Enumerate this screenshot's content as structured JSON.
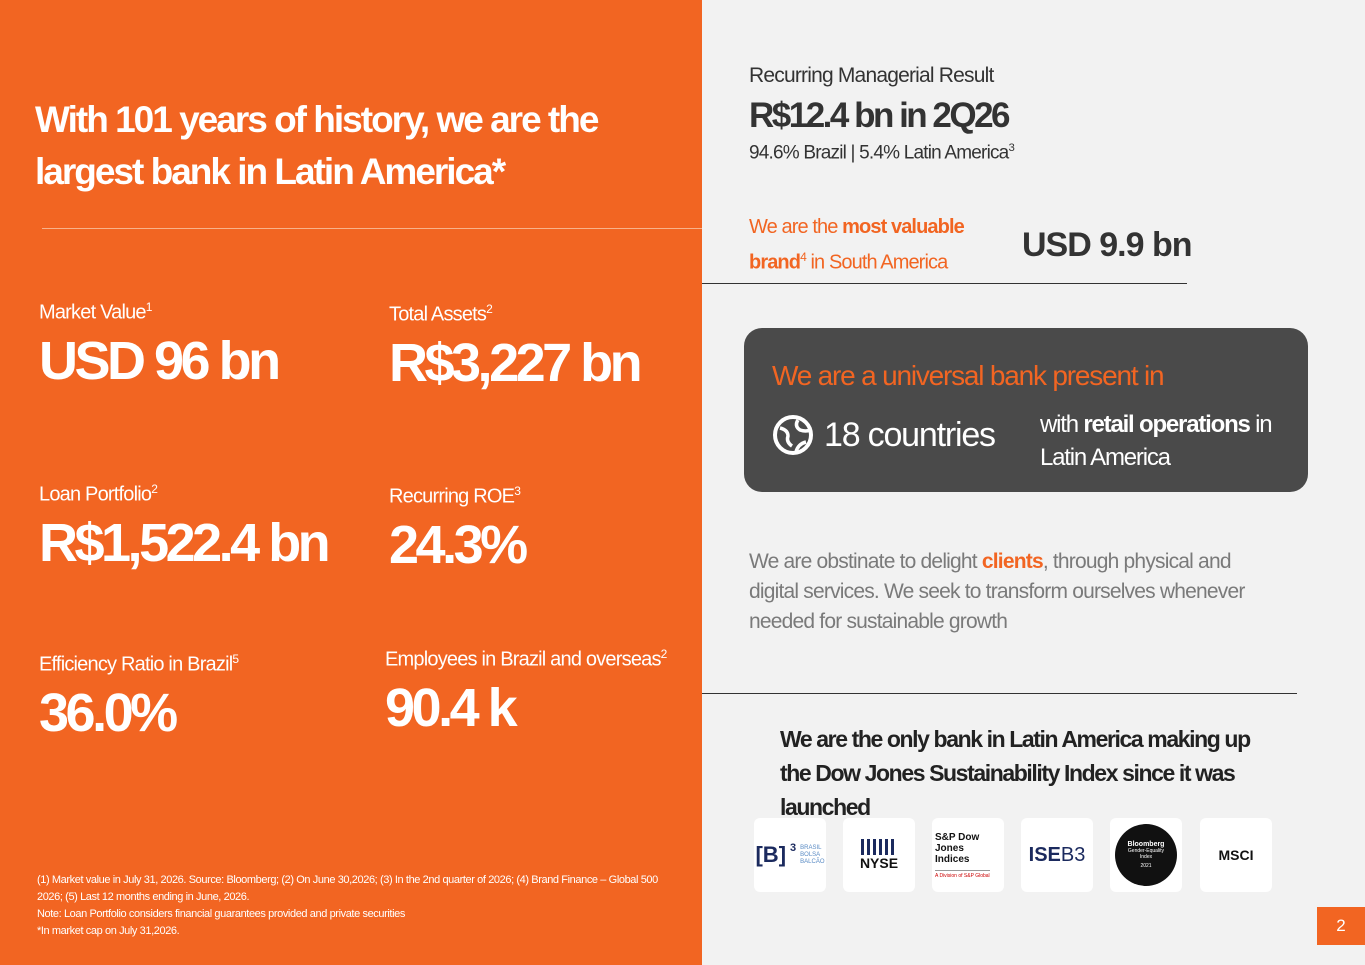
{
  "left": {
    "title": [
      "With 101 years of history, we are the",
      "largest bank in Latin America*"
    ],
    "metrics": [
      {
        "label": "Market Value",
        "note": "1",
        "value": "USD 96 bn"
      },
      {
        "label": "Total Assets",
        "note": "2",
        "value": "R$3,227 bn"
      },
      {
        "label": "Loan Portfolio",
        "note": "2",
        "value": "R$1,522.4 bn"
      },
      {
        "label": "Recurring ROE",
        "note": "3",
        "value": "24.3%"
      },
      {
        "label": "Efficiency Ratio in Brazil",
        "note": "5",
        "value": "36.0%"
      },
      {
        "label": "Employees in Brazil and overseas",
        "note": "2",
        "value": "90.4 k"
      }
    ],
    "footnotes": [
      "(1)  Market value in July 31, 2026. Source: Bloomberg; (2) On June 30,2026; (3) In the 2nd quarter of 2026; (4) Brand Finance – Global 500",
      "2026; (5) Last 12 months ending in June, 2026.",
      "Note: Loan Portfolio considers financial guarantees provided and private securities",
      "*In market cap on July 31,2026."
    ]
  },
  "right": {
    "result": {
      "label": "Recurring Managerial Result",
      "value": "R$12.4 bn in 2Q26",
      "split": "94.6% Brazil | 5.4% Latin America",
      "note": "3"
    },
    "brand": {
      "pre": "We are the",
      "bold": "most valuable brand",
      "note": "4",
      "post": "in South America",
      "value": "USD 9.9 bn"
    },
    "universal": {
      "heading": "We are a universal bank present in",
      "countries": "18 countries",
      "pre": "with",
      "bold": "retail operations",
      "post": "in Latin America"
    },
    "mission": {
      "pre": "We are obstinate to delight",
      "highlight": "clients",
      "post": ", through physical and digital services. We seek to transform ourselves whenever needed for sustainable growth"
    },
    "dow_jones": "We are the only bank in Latin America making up the Dow Jones Sustainability Index since it was launched",
    "logos": {
      "b3": {
        "mark": "[B]",
        "sup": "3",
        "text": [
          "BRASIL",
          "BOLSA",
          "BALCÃO"
        ]
      },
      "nyse": "NYSE",
      "sp": {
        "name": [
          "S&P Dow Jones",
          "Indices"
        ],
        "division": "A Division of S&P Global"
      },
      "ise": {
        "a": "ISE",
        "b": "B3"
      },
      "bloomberg": {
        "name": "Bloomberg",
        "sub": [
          "Gender-Equality",
          "Index"
        ],
        "year": "2021"
      },
      "msci": "MSCI"
    }
  },
  "page_number": "2"
}
